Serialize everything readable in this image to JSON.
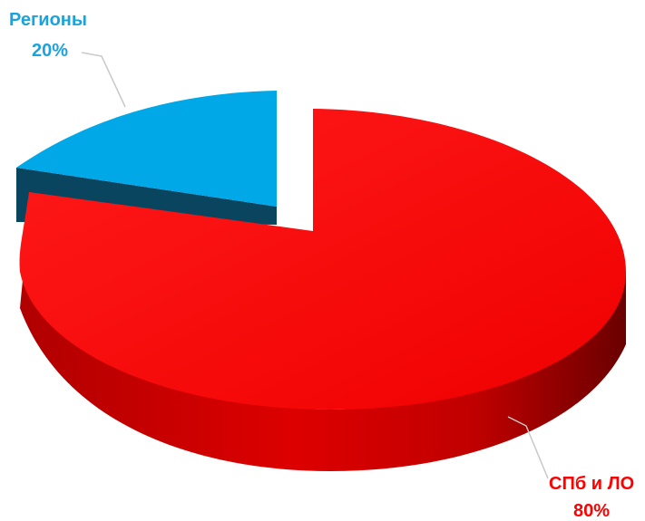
{
  "chart_data": {
    "type": "pie",
    "style": "3d-exploded",
    "slices": [
      {
        "label": "Регионы",
        "value": 20,
        "value_label": "20%",
        "color": "#00a8e8",
        "side_color": "#0a4560"
      },
      {
        "label": "СПб и ЛО",
        "value": 80,
        "value_label": "80%",
        "color": "#ff0000",
        "side_color": "#a00000"
      }
    ]
  }
}
